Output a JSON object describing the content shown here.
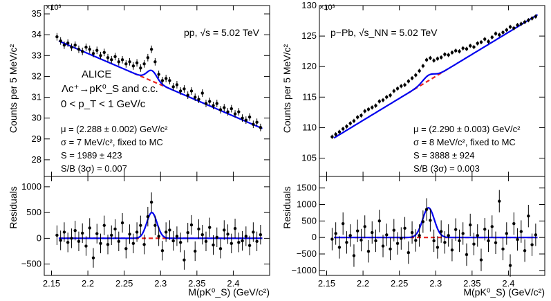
{
  "figure": {
    "x_axis_label": "M(pK⁰_S) (GeV/c²)",
    "x_ticks": [
      "2.15",
      "2.2",
      "2.25",
      "2.3",
      "2.35",
      "2.4"
    ],
    "colors": {
      "data": "#000000",
      "fit": "#0000ee",
      "background": "#e8231f",
      "frame": "#000000"
    }
  },
  "chart_data": [
    {
      "type": "scatter",
      "panel": "pp-top",
      "title": "pp, √s = 5.02 TeV",
      "ylabel": "Counts per 5 MeV/c²",
      "y_multiplier": "×10³",
      "xlim": [
        2.14,
        2.45
      ],
      "ylim": [
        27200,
        35400
      ],
      "y_ticks": [
        "28",
        "29",
        "30",
        "31",
        "32",
        "33",
        "34",
        "35"
      ],
      "y_tick_values": [
        28000,
        29000,
        30000,
        31000,
        32000,
        33000,
        34000,
        35000
      ],
      "fit": {
        "mu": 2.288,
        "sigma": 0.007,
        "signal_amplitude": 500
      },
      "background_line": {
        "x": [
          2.16,
          2.44
        ],
        "y": [
          33700,
          29500
        ]
      },
      "annotations": {
        "experiment": "ALICE",
        "decay": "Λc⁺→pK⁰_S and c.c.",
        "pt_range": "0 < p_T < 1 GeV/c",
        "mu": "μ = (2.288 ± 0.002) GeV/c²",
        "sigma": "σ = 7 MeV/c², fixed to MC",
        "signal": "S = 1989 ± 423",
        "sb": "S/B (3σ) = 0.007"
      },
      "points": {
        "x": [
          2.1575,
          2.1625,
          2.1675,
          2.1725,
          2.1775,
          2.1825,
          2.1875,
          2.1925,
          2.1975,
          2.2025,
          2.2075,
          2.2125,
          2.2175,
          2.2225,
          2.2275,
          2.2325,
          2.2375,
          2.2425,
          2.2475,
          2.2525,
          2.2575,
          2.2625,
          2.2675,
          2.2725,
          2.2775,
          2.2825,
          2.2875,
          2.2925,
          2.2975,
          2.3025,
          2.3075,
          2.3125,
          2.3175,
          2.3225,
          2.3275,
          2.3325,
          2.3375,
          2.3425,
          2.3475,
          2.3525,
          2.3575,
          2.3625,
          2.3675,
          2.3725,
          2.3775,
          2.3825,
          2.3875,
          2.3925,
          2.3975,
          2.4025,
          2.4075,
          2.4125,
          2.4175,
          2.4225,
          2.4275,
          2.4325,
          2.4375
        ],
        "y": [
          33900,
          33700,
          33500,
          33600,
          33400,
          33500,
          33300,
          33200,
          33400,
          33300,
          33100,
          33250,
          33000,
          33150,
          32900,
          32800,
          32950,
          32700,
          32800,
          32600,
          32700,
          32500,
          32650,
          32400,
          32600,
          32900,
          33300,
          32700,
          32100,
          31800,
          31900,
          31800,
          31500,
          31600,
          31300,
          31400,
          31100,
          31300,
          31000,
          30900,
          31200,
          30700,
          30800,
          30600,
          30700,
          30400,
          30500,
          30300,
          30450,
          30200,
          30300,
          30000,
          29900,
          30050,
          29700,
          29800,
          29550
        ],
        "y_err": 180
      }
    },
    {
      "type": "scatter",
      "panel": "pp-residuals",
      "ylabel": "Residuals",
      "xlim": [
        2.14,
        2.45
      ],
      "ylim": [
        -720,
        1200
      ],
      "y_ticks": [
        "−500",
        "0",
        "500",
        "1000"
      ],
      "y_tick_values": [
        -500,
        0,
        500,
        1000
      ],
      "points": {
        "x": [
          2.1575,
          2.1625,
          2.1675,
          2.1725,
          2.1775,
          2.1825,
          2.1875,
          2.1925,
          2.1975,
          2.2025,
          2.2075,
          2.2125,
          2.2175,
          2.2225,
          2.2275,
          2.2325,
          2.2375,
          2.2425,
          2.2475,
          2.2525,
          2.2575,
          2.2625,
          2.2675,
          2.2725,
          2.2775,
          2.2825,
          2.2875,
          2.2925,
          2.2975,
          2.3025,
          2.3075,
          2.3125,
          2.3175,
          2.3225,
          2.3275,
          2.3325,
          2.3375,
          2.3425,
          2.3475,
          2.3525,
          2.3575,
          2.3625,
          2.3675,
          2.3725,
          2.3775,
          2.3825,
          2.3875,
          2.3925,
          2.3975,
          2.4025,
          2.4075,
          2.4125,
          2.4175,
          2.4225,
          2.4275,
          2.4325,
          2.4375
        ],
        "y": [
          60,
          -40,
          120,
          -80,
          0,
          150,
          -60,
          100,
          -150,
          200,
          -380,
          90,
          -100,
          250,
          -120,
          60,
          180,
          -60,
          300,
          -200,
          80,
          -100,
          120,
          250,
          -120,
          420,
          700,
          250,
          40,
          -240,
          120,
          160,
          -50,
          40,
          -80,
          -420,
          110,
          260,
          -250,
          180,
          70,
          -60,
          210,
          -130,
          20,
          -200,
          160,
          80,
          -100,
          190,
          -80,
          -50,
          40,
          -140,
          120,
          -60,
          70
        ],
        "y_err": 190
      }
    },
    {
      "type": "scatter",
      "panel": "pPb-top",
      "title": "p−Pb, √s_NN = 5.02 TeV",
      "ylabel": "Counts per 5 MeV/c²",
      "y_multiplier": "×10³",
      "xlim": [
        2.14,
        2.45
      ],
      "ylim": [
        102000,
        130000
      ],
      "y_ticks": [
        "105",
        "110",
        "115",
        "120",
        "125",
        "130"
      ],
      "y_tick_values": [
        105000,
        110000,
        115000,
        120000,
        125000,
        130000
      ],
      "fit": {
        "mu": 2.29,
        "sigma": 0.008,
        "signal_amplitude": 900
      },
      "background_line": {
        "x": [
          2.16,
          2.44
        ],
        "y": [
          108300,
          128500
        ]
      },
      "annotations": {
        "mu": "μ = (2.290 ± 0.003) GeV/c²",
        "sigma": "σ = 8 MeV/c², fixed to MC",
        "signal": "S = 3888 ± 924",
        "sb": "S/B (3σ) = 0.003"
      },
      "points": {
        "x": [
          2.1575,
          2.1625,
          2.1675,
          2.1725,
          2.1775,
          2.1825,
          2.1875,
          2.1925,
          2.1975,
          2.2025,
          2.2075,
          2.2125,
          2.2175,
          2.2225,
          2.2275,
          2.2325,
          2.2375,
          2.2425,
          2.2475,
          2.2525,
          2.2575,
          2.2625,
          2.2675,
          2.2725,
          2.2775,
          2.2825,
          2.2875,
          2.2925,
          2.2975,
          2.3025,
          2.3075,
          2.3125,
          2.3175,
          2.3225,
          2.3275,
          2.3325,
          2.3375,
          2.3425,
          2.3475,
          2.3525,
          2.3575,
          2.3625,
          2.3675,
          2.3725,
          2.3775,
          2.3825,
          2.3875,
          2.3925,
          2.3975,
          2.4025,
          2.4075,
          2.4125,
          2.4175,
          2.4225,
          2.4275,
          2.4325,
          2.4375
        ],
        "y": [
          108500,
          108900,
          109300,
          109800,
          110200,
          110700,
          111100,
          111700,
          112000,
          112700,
          113000,
          113300,
          113600,
          114300,
          114500,
          115000,
          115300,
          116000,
          116400,
          116800,
          117000,
          117600,
          118100,
          118600,
          119300,
          120100,
          121100,
          121400,
          121000,
          121300,
          121500,
          122000,
          121900,
          122300,
          122600,
          122500,
          123000,
          122900,
          123400,
          123200,
          123800,
          124000,
          124500,
          124100,
          124800,
          125400,
          125200,
          125600,
          126000,
          126500,
          126300,
          126800,
          127000,
          127300,
          127600,
          127900,
          128200
        ],
        "y_err": 350
      }
    },
    {
      "type": "scatter",
      "panel": "pPb-residuals",
      "ylabel": "Residuals",
      "xlim": [
        2.14,
        2.45
      ],
      "ylim": [
        -1150,
        1850
      ],
      "y_ticks": [
        "−1000",
        "−500",
        "0",
        "500",
        "1000",
        "1500"
      ],
      "y_tick_values": [
        -1000,
        -500,
        0,
        500,
        1000,
        1500
      ],
      "points": {
        "x": [
          2.1575,
          2.1625,
          2.1675,
          2.1725,
          2.1775,
          2.1825,
          2.1875,
          2.1925,
          2.1975,
          2.2025,
          2.2075,
          2.2125,
          2.2175,
          2.2225,
          2.2275,
          2.2325,
          2.2375,
          2.2425,
          2.2475,
          2.2525,
          2.2575,
          2.2625,
          2.2675,
          2.2725,
          2.2775,
          2.2825,
          2.2875,
          2.2925,
          2.2975,
          2.3025,
          2.3075,
          2.3125,
          2.3175,
          2.3225,
          2.3275,
          2.3325,
          2.3375,
          2.3425,
          2.3475,
          2.3525,
          2.3575,
          2.3625,
          2.3675,
          2.3725,
          2.3775,
          2.3825,
          2.3875,
          2.3925,
          2.3975,
          2.4025,
          2.4075,
          2.4125,
          2.4175,
          2.4225,
          2.4275,
          2.4325,
          2.4375
        ],
        "y": [
          -50,
          120,
          -300,
          420,
          -150,
          60,
          -550,
          200,
          -80,
          330,
          -420,
          150,
          -100,
          500,
          -260,
          80,
          -350,
          220,
          -180,
          -30,
          280,
          -460,
          150,
          -90,
          60,
          480,
          850,
          520,
          -100,
          -300,
          180,
          -150,
          60,
          -380,
          240,
          -100,
          120,
          -520,
          380,
          -200,
          60,
          -680,
          250,
          -100,
          330,
          -160,
          1100,
          -350,
          120,
          -850,
          420,
          -60,
          180,
          -400,
          650,
          -220,
          80
        ],
        "y_err": 340
      }
    }
  ]
}
